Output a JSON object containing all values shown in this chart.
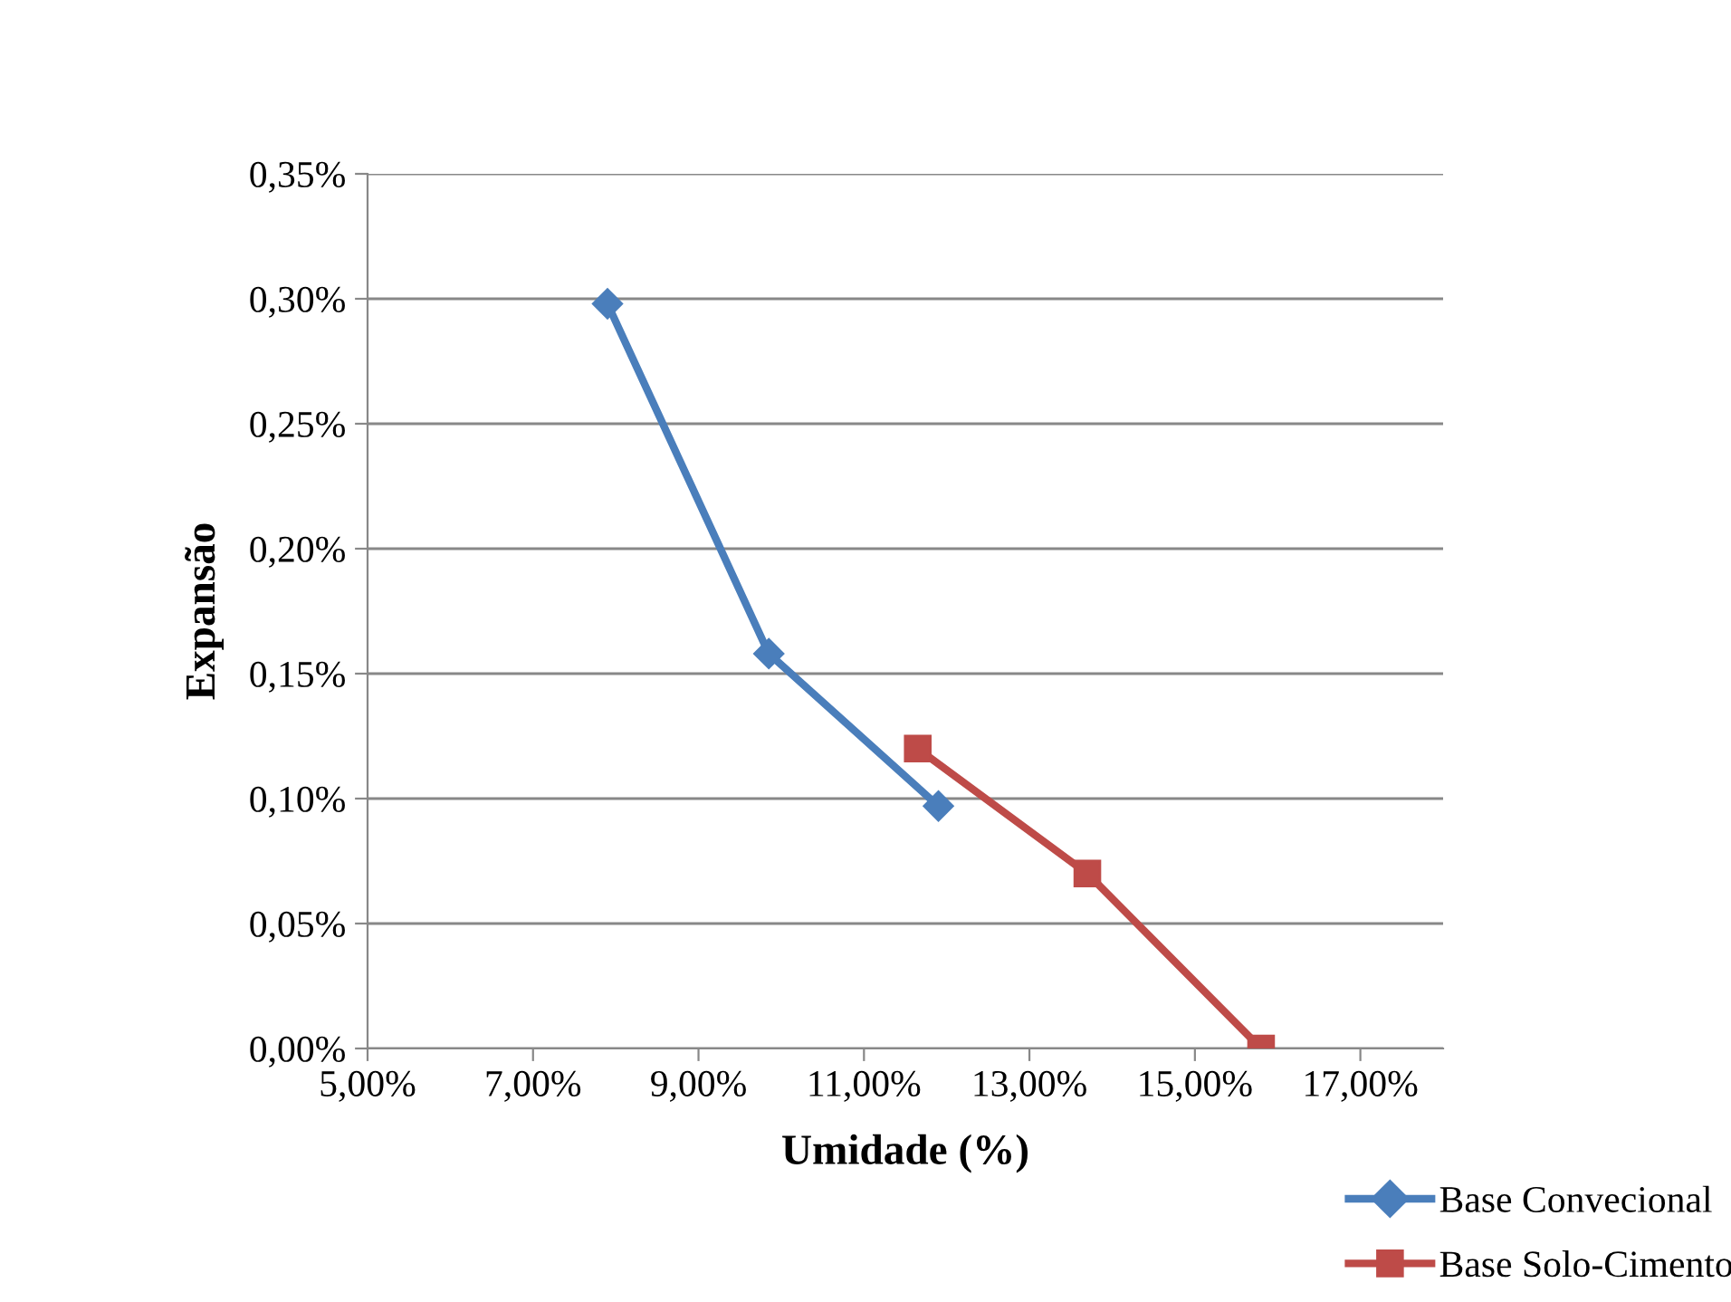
{
  "chart_data": {
    "type": "line",
    "xlabel": "Umidade (%)",
    "ylabel": "Expansão",
    "series": [
      {
        "name": "Base Convecional",
        "color": "#4a7ebb",
        "marker": "diamond",
        "x": [
          7.9,
          9.85,
          11.9
        ],
        "values": [
          0.298,
          0.158,
          0.097
        ]
      },
      {
        "name": "Base Solo-Cimento",
        "color": "#be4b48",
        "marker": "square",
        "x": [
          11.65,
          13.7,
          15.8
        ],
        "values": [
          0.12,
          0.07,
          0.0
        ]
      }
    ],
    "xlim": [
      5,
      18
    ],
    "xticks": [
      {
        "value": 5,
        "label": "5,00%"
      },
      {
        "value": 7,
        "label": "7,00%"
      },
      {
        "value": 9,
        "label": "9,00%"
      },
      {
        "value": 11,
        "label": "11,00%"
      },
      {
        "value": 13,
        "label": "13,00%"
      },
      {
        "value": 15,
        "label": "15,00%"
      },
      {
        "value": 17,
        "label": "17,00%"
      }
    ],
    "ylim": [
      0,
      0.35
    ],
    "yticks": [
      {
        "value": 0,
        "label": "0,00%"
      },
      {
        "value": 0.05,
        "label": "0,05%"
      },
      {
        "value": 0.1,
        "label": "0,10%"
      },
      {
        "value": 0.15,
        "label": "0,15%"
      },
      {
        "value": 0.2,
        "label": "0,20%"
      },
      {
        "value": 0.25,
        "label": "0,25%"
      },
      {
        "value": 0.3,
        "label": "0,30%"
      },
      {
        "value": 0.35,
        "label": "0,35%"
      }
    ],
    "grid": "y",
    "legend": "bottom right",
    "line_style": "solid"
  }
}
